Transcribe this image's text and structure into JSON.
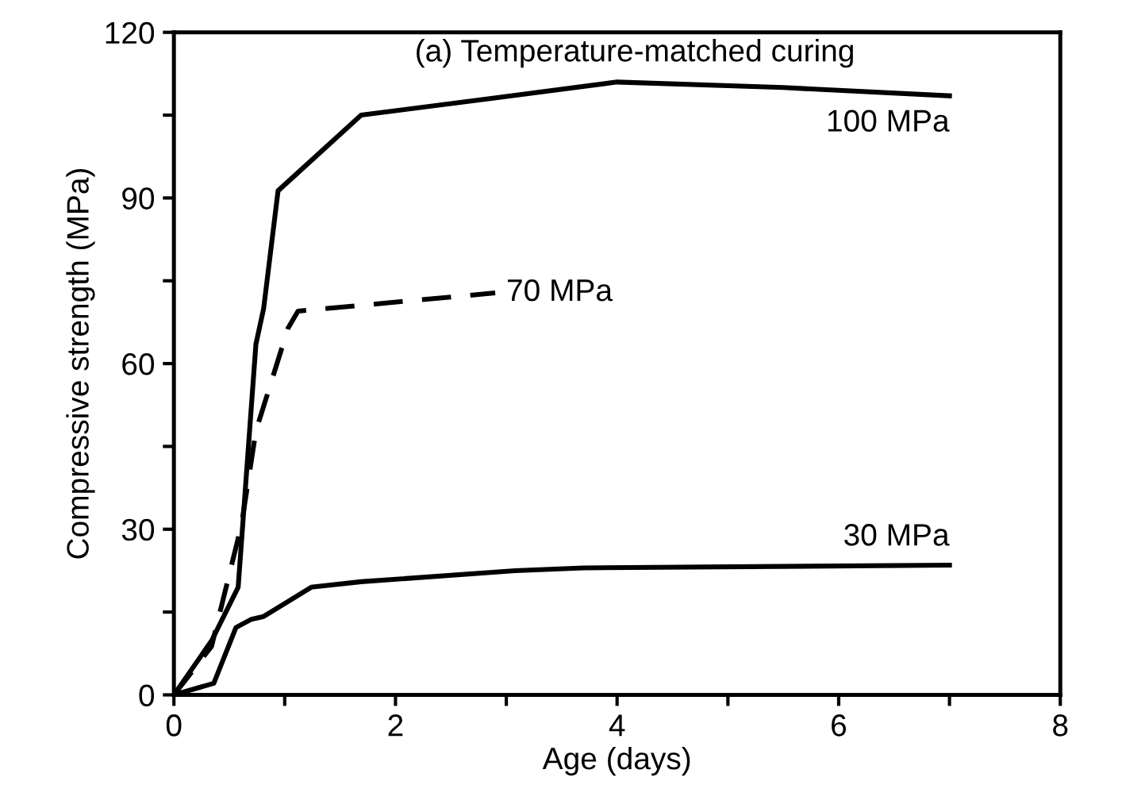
{
  "chart_data": {
    "type": "line",
    "xlabel": "Age (days)",
    "ylabel": "Compressive strength (MPa)",
    "xlim": [
      0,
      8
    ],
    "ylim": [
      0,
      120
    ],
    "xticks": [
      0,
      {
        "value": 1,
        "label": null
      },
      2,
      {
        "value": 3,
        "label": null
      },
      4,
      {
        "value": 5,
        "label": null
      },
      6,
      {
        "value": 7,
        "label": null
      },
      8
    ],
    "yticks": [
      0,
      {
        "value": 15,
        "label": null
      },
      30,
      {
        "value": 45,
        "label": null
      },
      60,
      {
        "value": 75,
        "label": null
      },
      90,
      {
        "value": 105,
        "label": null
      },
      120
    ],
    "grid": false,
    "legend": false,
    "marker": "none",
    "series": [
      {
        "name": "100 MPa",
        "color": "#000000",
        "line_style": "solid",
        "x": [
          0,
          0.34,
          0.58,
          0.74,
          0.81,
          0.94,
          1.69,
          2.85,
          4.0,
          5.5,
          7.0
        ],
        "values": [
          0,
          9.8,
          19.5,
          63.5,
          70,
          91.3,
          105,
          108,
          111,
          110,
          108.5
        ]
      },
      {
        "name": "70 MPa",
        "color": "#000000",
        "line_style": "dashed",
        "x": [
          0,
          0.34,
          0.61,
          0.74,
          1.03,
          1.12,
          2.9
        ],
        "values": [
          0,
          8.8,
          30.8,
          47.8,
          66.4,
          69.5,
          72.8
        ]
      },
      {
        "name": "30 MPa",
        "color": "#000000",
        "line_style": "solid",
        "x": [
          0,
          0.36,
          0.56,
          0.7,
          0.81,
          1.24,
          1.69,
          3.08,
          3.7,
          7.0
        ],
        "values": [
          0,
          2.1,
          12.2,
          13.7,
          14.2,
          19.5,
          20.5,
          22.5,
          23,
          23.5
        ]
      }
    ],
    "annotations": [
      "(a) Temperature-matched curing"
    ]
  }
}
